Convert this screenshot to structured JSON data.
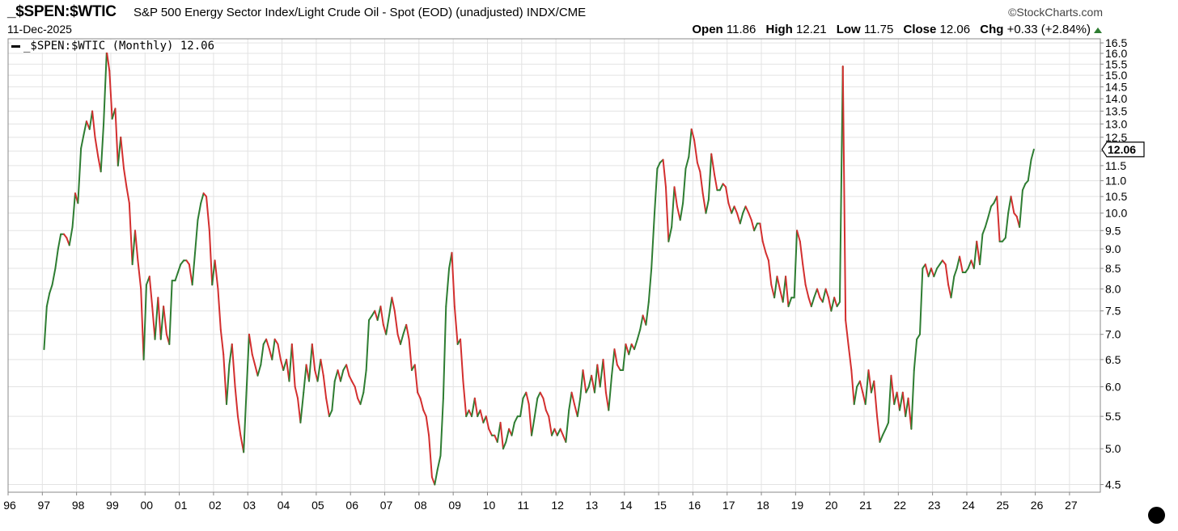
{
  "header": {
    "symbol": "_$SPEN:$WTIC",
    "description": "S&P 500 Energy Sector Index/Light Crude Oil - Spot (EOD) (unadjusted)",
    "exchange": "INDX/CME",
    "date": "11-Dec-2025",
    "brand": "©StockCharts.com",
    "open_label": "Open",
    "open": "11.86",
    "high_label": "High",
    "high": "12.21",
    "low_label": "Low",
    "low": "11.75",
    "close_label": "Close",
    "close": "12.06",
    "chg_label": "Chg",
    "chg": "+0.33 (+2.84%)"
  },
  "legend": {
    "text": "_$SPEN:$WTIC (Monthly) 12.06"
  },
  "colors": {
    "up": "#2e7d32",
    "down": "#d32f2f",
    "grid": "#e3e3e3",
    "axis": "#888888"
  },
  "chart_data": {
    "type": "line",
    "scale": "log",
    "grid": true,
    "series_name": "_$SPEN:$WTIC (Monthly)",
    "last_value": "12.06",
    "ylim": [
      4.4,
      16.7
    ],
    "xlim": [
      1996.0,
      2027.9
    ],
    "yticks": [
      "4.5",
      "5.0",
      "5.5",
      "6.0",
      "6.5",
      "7.0",
      "7.5",
      "8.0",
      "8.5",
      "9.0",
      "9.5",
      "10.0",
      "10.5",
      "11.0",
      "11.5",
      "12.0",
      "12.5",
      "13.0",
      "13.5",
      "14.0",
      "14.5",
      "15.0",
      "15.5",
      "16.0",
      "16.5"
    ],
    "xticks": [
      "96",
      "97",
      "98",
      "99",
      "00",
      "01",
      "02",
      "03",
      "04",
      "05",
      "06",
      "07",
      "08",
      "09",
      "10",
      "11",
      "12",
      "13",
      "14",
      "15",
      "16",
      "17",
      "18",
      "19",
      "20",
      "21",
      "22",
      "23",
      "24",
      "25",
      "26",
      "27"
    ],
    "points": [
      [
        1997.05,
        6.7
      ],
      [
        1997.13,
        7.6
      ],
      [
        1997.21,
        7.9
      ],
      [
        1997.29,
        8.1
      ],
      [
        1997.38,
        8.5
      ],
      [
        1997.46,
        9.0
      ],
      [
        1997.54,
        9.4
      ],
      [
        1997.63,
        9.4
      ],
      [
        1997.71,
        9.3
      ],
      [
        1997.79,
        9.1
      ],
      [
        1997.88,
        9.6
      ],
      [
        1997.96,
        10.6
      ],
      [
        1998.04,
        10.3
      ],
      [
        1998.13,
        12.1
      ],
      [
        1998.21,
        12.6
      ],
      [
        1998.29,
        13.1
      ],
      [
        1998.38,
        12.8
      ],
      [
        1998.46,
        13.5
      ],
      [
        1998.54,
        12.5
      ],
      [
        1998.63,
        11.8
      ],
      [
        1998.71,
        11.3
      ],
      [
        1998.79,
        13.0
      ],
      [
        1998.88,
        16.1
      ],
      [
        1998.96,
        15.2
      ],
      [
        1999.04,
        13.2
      ],
      [
        1999.13,
        13.6
      ],
      [
        1999.21,
        11.5
      ],
      [
        1999.29,
        12.5
      ],
      [
        1999.38,
        11.4
      ],
      [
        1999.46,
        10.8
      ],
      [
        1999.54,
        10.3
      ],
      [
        1999.63,
        8.6
      ],
      [
        1999.71,
        9.5
      ],
      [
        1999.79,
        8.7
      ],
      [
        1999.88,
        8.0
      ],
      [
        1999.96,
        6.5
      ],
      [
        2000.04,
        8.1
      ],
      [
        2000.13,
        8.3
      ],
      [
        2000.21,
        7.6
      ],
      [
        2000.29,
        6.9
      ],
      [
        2000.38,
        7.8
      ],
      [
        2000.46,
        6.9
      ],
      [
        2000.54,
        7.6
      ],
      [
        2000.63,
        7.0
      ],
      [
        2000.71,
        6.8
      ],
      [
        2000.79,
        8.2
      ],
      [
        2000.88,
        8.2
      ],
      [
        2000.96,
        8.4
      ],
      [
        2001.04,
        8.6
      ],
      [
        2001.13,
        8.7
      ],
      [
        2001.21,
        8.7
      ],
      [
        2001.29,
        8.6
      ],
      [
        2001.38,
        8.1
      ],
      [
        2001.46,
        8.9
      ],
      [
        2001.54,
        9.8
      ],
      [
        2001.63,
        10.3
      ],
      [
        2001.71,
        10.6
      ],
      [
        2001.79,
        10.5
      ],
      [
        2001.88,
        9.5
      ],
      [
        2001.96,
        8.1
      ],
      [
        2002.04,
        8.7
      ],
      [
        2002.13,
        8.0
      ],
      [
        2002.21,
        7.1
      ],
      [
        2002.29,
        6.6
      ],
      [
        2002.38,
        5.7
      ],
      [
        2002.46,
        6.4
      ],
      [
        2002.54,
        6.8
      ],
      [
        2002.63,
        6.0
      ],
      [
        2002.71,
        5.5
      ],
      [
        2002.79,
        5.2
      ],
      [
        2002.88,
        4.95
      ],
      [
        2002.96,
        5.9
      ],
      [
        2003.04,
        7.0
      ],
      [
        2003.13,
        6.6
      ],
      [
        2003.21,
        6.4
      ],
      [
        2003.29,
        6.2
      ],
      [
        2003.38,
        6.4
      ],
      [
        2003.46,
        6.8
      ],
      [
        2003.54,
        6.9
      ],
      [
        2003.63,
        6.7
      ],
      [
        2003.71,
        6.5
      ],
      [
        2003.79,
        6.9
      ],
      [
        2003.88,
        6.8
      ],
      [
        2003.96,
        6.5
      ],
      [
        2004.04,
        6.3
      ],
      [
        2004.13,
        6.5
      ],
      [
        2004.21,
        6.1
      ],
      [
        2004.29,
        6.8
      ],
      [
        2004.38,
        6.0
      ],
      [
        2004.46,
        5.8
      ],
      [
        2004.54,
        5.4
      ],
      [
        2004.63,
        5.9
      ],
      [
        2004.71,
        6.4
      ],
      [
        2004.79,
        6.1
      ],
      [
        2004.88,
        6.8
      ],
      [
        2004.96,
        6.3
      ],
      [
        2005.04,
        6.1
      ],
      [
        2005.13,
        6.5
      ],
      [
        2005.21,
        6.2
      ],
      [
        2005.29,
        5.8
      ],
      [
        2005.38,
        5.5
      ],
      [
        2005.46,
        5.6
      ],
      [
        2005.54,
        6.1
      ],
      [
        2005.63,
        6.3
      ],
      [
        2005.71,
        6.1
      ],
      [
        2005.79,
        6.3
      ],
      [
        2005.88,
        6.4
      ],
      [
        2005.96,
        6.2
      ],
      [
        2006.04,
        6.1
      ],
      [
        2006.13,
        6.0
      ],
      [
        2006.21,
        5.8
      ],
      [
        2006.29,
        5.7
      ],
      [
        2006.38,
        5.9
      ],
      [
        2006.46,
        6.3
      ],
      [
        2006.54,
        7.3
      ],
      [
        2006.63,
        7.4
      ],
      [
        2006.71,
        7.5
      ],
      [
        2006.79,
        7.3
      ],
      [
        2006.88,
        7.6
      ],
      [
        2006.96,
        7.2
      ],
      [
        2007.04,
        7.0
      ],
      [
        2007.13,
        7.4
      ],
      [
        2007.21,
        7.8
      ],
      [
        2007.29,
        7.5
      ],
      [
        2007.38,
        7.0
      ],
      [
        2007.46,
        6.8
      ],
      [
        2007.54,
        7.0
      ],
      [
        2007.63,
        7.2
      ],
      [
        2007.71,
        6.9
      ],
      [
        2007.79,
        6.3
      ],
      [
        2007.88,
        6.4
      ],
      [
        2007.96,
        5.9
      ],
      [
        2008.04,
        5.8
      ],
      [
        2008.13,
        5.6
      ],
      [
        2008.21,
        5.5
      ],
      [
        2008.29,
        5.2
      ],
      [
        2008.38,
        4.6
      ],
      [
        2008.46,
        4.5
      ],
      [
        2008.54,
        4.7
      ],
      [
        2008.63,
        4.9
      ],
      [
        2008.71,
        5.8
      ],
      [
        2008.79,
        7.6
      ],
      [
        2008.88,
        8.5
      ],
      [
        2008.96,
        8.9
      ],
      [
        2009.04,
        7.6
      ],
      [
        2009.13,
        6.8
      ],
      [
        2009.21,
        6.9
      ],
      [
        2009.29,
        6.1
      ],
      [
        2009.38,
        5.5
      ],
      [
        2009.46,
        5.6
      ],
      [
        2009.54,
        5.5
      ],
      [
        2009.63,
        5.8
      ],
      [
        2009.71,
        5.5
      ],
      [
        2009.79,
        5.6
      ],
      [
        2009.88,
        5.4
      ],
      [
        2009.96,
        5.5
      ],
      [
        2010.04,
        5.3
      ],
      [
        2010.13,
        5.2
      ],
      [
        2010.21,
        5.2
      ],
      [
        2010.29,
        5.1
      ],
      [
        2010.38,
        5.4
      ],
      [
        2010.46,
        5.0
      ],
      [
        2010.54,
        5.1
      ],
      [
        2010.63,
        5.3
      ],
      [
        2010.71,
        5.2
      ],
      [
        2010.79,
        5.4
      ],
      [
        2010.88,
        5.5
      ],
      [
        2010.96,
        5.5
      ],
      [
        2011.04,
        5.8
      ],
      [
        2011.13,
        5.9
      ],
      [
        2011.21,
        5.7
      ],
      [
        2011.29,
        5.2
      ],
      [
        2011.38,
        5.5
      ],
      [
        2011.46,
        5.8
      ],
      [
        2011.54,
        5.9
      ],
      [
        2011.63,
        5.8
      ],
      [
        2011.71,
        5.6
      ],
      [
        2011.79,
        5.5
      ],
      [
        2011.88,
        5.2
      ],
      [
        2011.96,
        5.3
      ],
      [
        2012.04,
        5.2
      ],
      [
        2012.13,
        5.3
      ],
      [
        2012.21,
        5.2
      ],
      [
        2012.29,
        5.1
      ],
      [
        2012.38,
        5.6
      ],
      [
        2012.46,
        5.9
      ],
      [
        2012.54,
        5.7
      ],
      [
        2012.63,
        5.5
      ],
      [
        2012.71,
        5.8
      ],
      [
        2012.79,
        6.3
      ],
      [
        2012.88,
        5.9
      ],
      [
        2012.96,
        6.0
      ],
      [
        2013.04,
        6.2
      ],
      [
        2013.13,
        5.9
      ],
      [
        2013.21,
        6.4
      ],
      [
        2013.29,
        6.0
      ],
      [
        2013.38,
        6.5
      ],
      [
        2013.46,
        5.9
      ],
      [
        2013.54,
        5.6
      ],
      [
        2013.63,
        6.2
      ],
      [
        2013.71,
        6.7
      ],
      [
        2013.79,
        6.4
      ],
      [
        2013.88,
        6.3
      ],
      [
        2013.96,
        6.3
      ],
      [
        2014.04,
        6.8
      ],
      [
        2014.13,
        6.6
      ],
      [
        2014.21,
        6.8
      ],
      [
        2014.29,
        6.7
      ],
      [
        2014.38,
        6.9
      ],
      [
        2014.46,
        7.1
      ],
      [
        2014.54,
        7.4
      ],
      [
        2014.63,
        7.2
      ],
      [
        2014.71,
        7.7
      ],
      [
        2014.79,
        8.5
      ],
      [
        2014.88,
        10.0
      ],
      [
        2014.96,
        11.4
      ],
      [
        2015.04,
        11.6
      ],
      [
        2015.13,
        11.7
      ],
      [
        2015.21,
        10.8
      ],
      [
        2015.29,
        9.2
      ],
      [
        2015.38,
        9.6
      ],
      [
        2015.46,
        10.8
      ],
      [
        2015.54,
        10.2
      ],
      [
        2015.63,
        9.8
      ],
      [
        2015.71,
        10.3
      ],
      [
        2015.79,
        11.4
      ],
      [
        2015.88,
        11.8
      ],
      [
        2015.96,
        12.8
      ],
      [
        2016.04,
        12.4
      ],
      [
        2016.13,
        11.6
      ],
      [
        2016.21,
        11.3
      ],
      [
        2016.29,
        10.6
      ],
      [
        2016.38,
        10.0
      ],
      [
        2016.46,
        10.4
      ],
      [
        2016.54,
        11.9
      ],
      [
        2016.63,
        11.2
      ],
      [
        2016.71,
        10.7
      ],
      [
        2016.79,
        10.7
      ],
      [
        2016.88,
        10.9
      ],
      [
        2016.96,
        10.8
      ],
      [
        2017.04,
        10.3
      ],
      [
        2017.13,
        10.0
      ],
      [
        2017.21,
        10.2
      ],
      [
        2017.29,
        10.0
      ],
      [
        2017.38,
        9.7
      ],
      [
        2017.46,
        10.0
      ],
      [
        2017.54,
        10.2
      ],
      [
        2017.63,
        10.0
      ],
      [
        2017.71,
        9.8
      ],
      [
        2017.79,
        9.5
      ],
      [
        2017.88,
        9.7
      ],
      [
        2017.96,
        9.7
      ],
      [
        2018.04,
        9.2
      ],
      [
        2018.13,
        8.9
      ],
      [
        2018.21,
        8.7
      ],
      [
        2018.29,
        8.1
      ],
      [
        2018.38,
        7.8
      ],
      [
        2018.46,
        8.3
      ],
      [
        2018.54,
        8.0
      ],
      [
        2018.63,
        7.7
      ],
      [
        2018.71,
        8.3
      ],
      [
        2018.79,
        7.6
      ],
      [
        2018.88,
        7.8
      ],
      [
        2018.96,
        7.8
      ],
      [
        2019.04,
        9.5
      ],
      [
        2019.13,
        9.2
      ],
      [
        2019.21,
        8.6
      ],
      [
        2019.29,
        8.1
      ],
      [
        2019.38,
        7.8
      ],
      [
        2019.46,
        7.6
      ],
      [
        2019.54,
        7.8
      ],
      [
        2019.63,
        8.0
      ],
      [
        2019.71,
        7.8
      ],
      [
        2019.79,
        7.7
      ],
      [
        2019.88,
        8.0
      ],
      [
        2019.96,
        7.8
      ],
      [
        2020.04,
        7.5
      ],
      [
        2020.13,
        7.8
      ],
      [
        2020.21,
        7.6
      ],
      [
        2020.29,
        7.7
      ],
      [
        2020.38,
        15.4
      ],
      [
        2020.46,
        7.3
      ],
      [
        2020.54,
        6.8
      ],
      [
        2020.63,
        6.3
      ],
      [
        2020.71,
        5.7
      ],
      [
        2020.79,
        6.0
      ],
      [
        2020.88,
        6.1
      ],
      [
        2020.96,
        5.9
      ],
      [
        2021.04,
        5.7
      ],
      [
        2021.13,
        6.3
      ],
      [
        2021.21,
        5.9
      ],
      [
        2021.29,
        6.1
      ],
      [
        2021.38,
        5.5
      ],
      [
        2021.46,
        5.1
      ],
      [
        2021.54,
        5.2
      ],
      [
        2021.63,
        5.3
      ],
      [
        2021.71,
        5.4
      ],
      [
        2021.79,
        6.2
      ],
      [
        2021.88,
        5.7
      ],
      [
        2021.96,
        5.9
      ],
      [
        2022.04,
        5.6
      ],
      [
        2022.13,
        5.9
      ],
      [
        2022.21,
        5.5
      ],
      [
        2022.29,
        5.8
      ],
      [
        2022.38,
        5.3
      ],
      [
        2022.46,
        6.3
      ],
      [
        2022.54,
        6.9
      ],
      [
        2022.63,
        7.0
      ],
      [
        2022.71,
        8.5
      ],
      [
        2022.79,
        8.6
      ],
      [
        2022.88,
        8.3
      ],
      [
        2022.96,
        8.5
      ],
      [
        2023.04,
        8.3
      ],
      [
        2023.13,
        8.5
      ],
      [
        2023.21,
        8.6
      ],
      [
        2023.29,
        8.7
      ],
      [
        2023.38,
        8.6
      ],
      [
        2023.46,
        8.1
      ],
      [
        2023.54,
        7.8
      ],
      [
        2023.63,
        8.3
      ],
      [
        2023.71,
        8.5
      ],
      [
        2023.79,
        8.8
      ],
      [
        2023.88,
        8.4
      ],
      [
        2023.96,
        8.4
      ],
      [
        2024.04,
        8.5
      ],
      [
        2024.13,
        8.7
      ],
      [
        2024.21,
        8.5
      ],
      [
        2024.29,
        9.2
      ],
      [
        2024.38,
        8.6
      ],
      [
        2024.46,
        9.4
      ],
      [
        2024.54,
        9.6
      ],
      [
        2024.63,
        9.9
      ],
      [
        2024.71,
        10.2
      ],
      [
        2024.79,
        10.3
      ],
      [
        2024.88,
        10.5
      ],
      [
        2024.96,
        9.2
      ],
      [
        2025.04,
        9.2
      ],
      [
        2025.13,
        9.3
      ],
      [
        2025.21,
        10.0
      ],
      [
        2025.29,
        10.5
      ],
      [
        2025.38,
        10.0
      ],
      [
        2025.46,
        9.9
      ],
      [
        2025.54,
        9.6
      ],
      [
        2025.63,
        10.7
      ],
      [
        2025.71,
        10.9
      ],
      [
        2025.79,
        11.0
      ],
      [
        2025.88,
        11.7
      ],
      [
        2025.96,
        12.06
      ]
    ]
  }
}
